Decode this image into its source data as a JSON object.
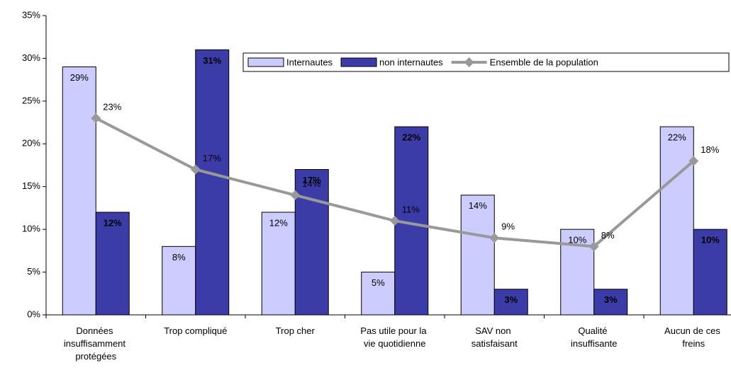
{
  "chart_data": {
    "type": "bar-line",
    "categories": [
      "Données insuffisamment protégées",
      "Trop compliqué",
      "Trop cher",
      "Pas utile pour la vie quotidienne",
      "SAV non satisfaisant",
      "Qualité insuffisante",
      "Aucun de ces freins"
    ],
    "series": [
      {
        "name": "Internautes",
        "kind": "bar",
        "color": "#ccccff",
        "values": [
          29,
          8,
          12,
          5,
          14,
          10,
          22
        ],
        "value_labels": [
          "29%",
          "8%",
          "12%",
          "5%",
          "14%",
          "10%",
          "22%"
        ]
      },
      {
        "name": "non internautes",
        "kind": "bar",
        "color": "#3c3ca8",
        "values": [
          12,
          31,
          17,
          22,
          3,
          3,
          10
        ],
        "value_labels": [
          "12%",
          "31%",
          "17%",
          "22%",
          "3%",
          "3%",
          "10%"
        ]
      },
      {
        "name": "Ensemble de la population",
        "kind": "line",
        "color": "#999999",
        "values": [
          23,
          17,
          14,
          11,
          9,
          8,
          18
        ],
        "value_labels": [
          "23%",
          "17%",
          "14%",
          "11%",
          "9%",
          "8%",
          "18%"
        ]
      }
    ],
    "ylim": [
      0,
      35
    ],
    "yticks": [
      {
        "value": 0,
        "label": "0%"
      },
      {
        "value": 5,
        "label": "5%"
      },
      {
        "value": 10,
        "label": "10%"
      },
      {
        "value": 15,
        "label": "15%"
      },
      {
        "value": 20,
        "label": "20%"
      },
      {
        "value": 25,
        "label": "25%"
      },
      {
        "value": 30,
        "label": "30%"
      },
      {
        "value": 35,
        "label": "35%"
      }
    ],
    "legend": "top-right"
  }
}
